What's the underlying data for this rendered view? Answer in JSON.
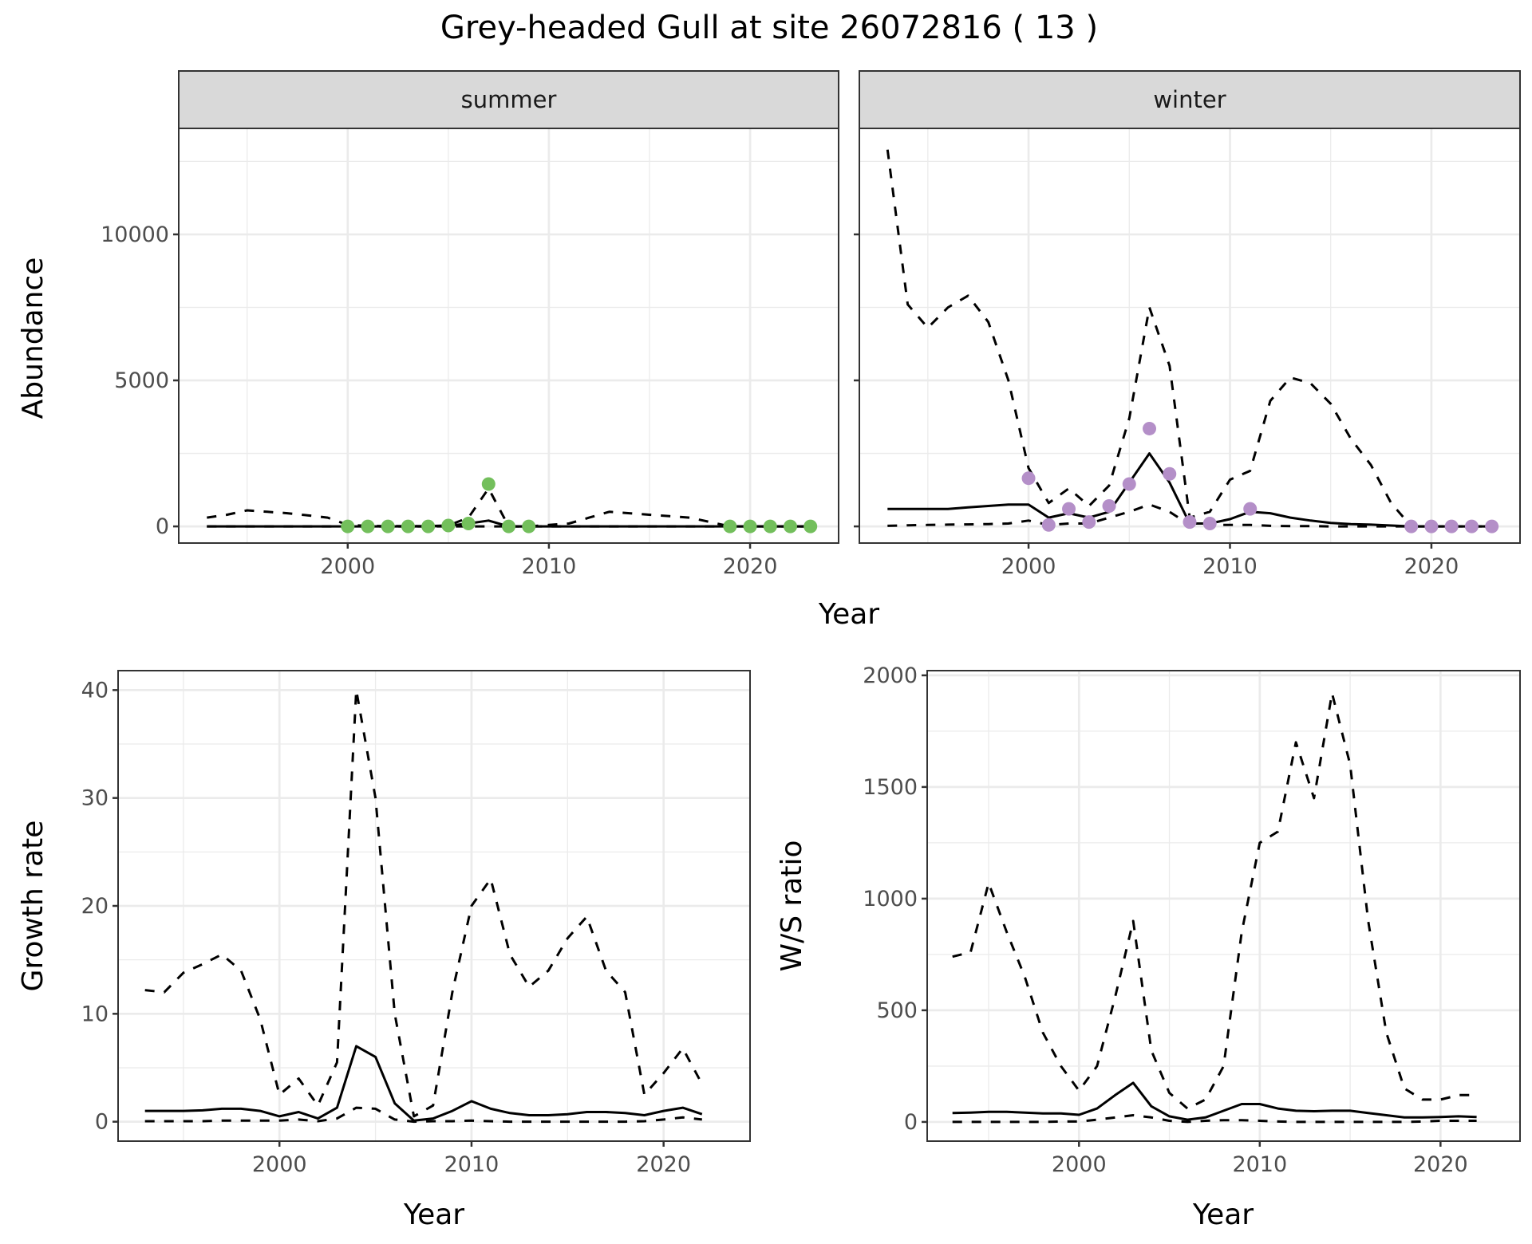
{
  "title": "Grey-headed Gull at site 26072816 ( 13 )",
  "colors": {
    "summer_points": "#73bf5c",
    "winter_points": "#b48fc8",
    "lines": "#000000",
    "strip": "#d9d9d9",
    "grid": "#ebebeb",
    "border": "#333333"
  },
  "chart_data": [
    {
      "type": "line",
      "panel": "summer",
      "strip_label": "summer",
      "ylabel": "Abundance",
      "xlabel": "Year",
      "xlim": [
        1991.6,
        2024.4
      ],
      "ylim": [
        -570,
        13630
      ],
      "xticks": [
        2000,
        2010,
        2020
      ],
      "yticks": [
        0,
        5000,
        10000
      ],
      "grid": true,
      "x": [
        1993,
        1994,
        1995,
        1996,
        1997,
        1998,
        1999,
        2000,
        2001,
        2002,
        2003,
        2004,
        2005,
        2006,
        2007,
        2008,
        2009,
        2010,
        2011,
        2012,
        2013,
        2014,
        2015,
        2016,
        2017,
        2018,
        2019,
        2020,
        2021,
        2022,
        2023
      ],
      "series": [
        {
          "style": "dashed",
          "values": [
            300,
            400,
            550,
            500,
            450,
            380,
            300,
            50,
            20,
            10,
            10,
            10,
            30,
            300,
            1300,
            0,
            0,
            50,
            100,
            300,
            500,
            450,
            400,
            350,
            300,
            150,
            0,
            0,
            0,
            0,
            0
          ]
        },
        {
          "style": "solid",
          "values": [
            0,
            0,
            0,
            0,
            0,
            0,
            0,
            0,
            0,
            0,
            0,
            0,
            20,
            100,
            200,
            0,
            0,
            0,
            0,
            0,
            0,
            0,
            0,
            0,
            0,
            0,
            0,
            0,
            0,
            0,
            0
          ]
        },
        {
          "style": "dashed",
          "values": [
            0,
            0,
            0,
            0,
            0,
            0,
            0,
            0,
            0,
            0,
            0,
            0,
            0,
            0,
            0,
            0,
            0,
            0,
            0,
            0,
            0,
            0,
            0,
            0,
            0,
            0,
            0,
            0,
            0,
            0,
            0
          ]
        }
      ],
      "points": {
        "x": [
          2000,
          2001,
          2002,
          2003,
          2004,
          2005,
          2006,
          2007,
          2008,
          2009,
          2019,
          2020,
          2021,
          2022,
          2023
        ],
        "y": [
          0,
          0,
          0,
          0,
          0,
          30,
          100,
          1450,
          0,
          0,
          0,
          0,
          0,
          0,
          0
        ]
      }
    },
    {
      "type": "line",
      "panel": "winter",
      "strip_label": "winter",
      "xlabel": "Year",
      "xlim": [
        1991.6,
        2024.4
      ],
      "ylim": [
        -570,
        13630
      ],
      "xticks": [
        2000,
        2010,
        2020
      ],
      "yticks": [
        0,
        5000,
        10000
      ],
      "grid": true,
      "x": [
        1993,
        1994,
        1995,
        1996,
        1997,
        1998,
        1999,
        2000,
        2001,
        2002,
        2003,
        2004,
        2005,
        2006,
        2007,
        2008,
        2009,
        2010,
        2011,
        2012,
        2013,
        2014,
        2015,
        2016,
        2017,
        2018,
        2019,
        2020,
        2021,
        2022,
        2023
      ],
      "series": [
        {
          "style": "dashed",
          "values": [
            12900,
            7600,
            6800,
            7500,
            7900,
            7000,
            5000,
            2000,
            800,
            1300,
            700,
            1400,
            3700,
            7500,
            5500,
            300,
            500,
            1600,
            1900,
            4300,
            5100,
            4900,
            4200,
            3000,
            2100,
            800,
            0,
            0,
            0,
            0,
            0
          ]
        },
        {
          "style": "solid",
          "values": [
            600,
            600,
            600,
            600,
            650,
            700,
            750,
            750,
            300,
            450,
            300,
            500,
            1500,
            2500,
            1500,
            100,
            100,
            250,
            500,
            450,
            300,
            200,
            120,
            80,
            60,
            30,
            0,
            0,
            0,
            0,
            0
          ]
        },
        {
          "style": "dashed",
          "values": [
            20,
            40,
            50,
            60,
            70,
            80,
            100,
            200,
            50,
            100,
            100,
            300,
            500,
            750,
            500,
            50,
            50,
            50,
            50,
            20,
            10,
            10,
            0,
            0,
            0,
            0,
            0,
            0,
            0,
            0,
            0
          ]
        }
      ],
      "points": {
        "x": [
          2000,
          2001,
          2002,
          2003,
          2004,
          2005,
          2006,
          2007,
          2008,
          2009,
          2011,
          2019,
          2020,
          2021,
          2022,
          2023
        ],
        "y": [
          1650,
          50,
          600,
          150,
          700,
          1450,
          3350,
          1800,
          150,
          100,
          600,
          0,
          0,
          0,
          0,
          0
        ]
      }
    },
    {
      "type": "line",
      "panel": "growth",
      "ylabel": "Growth rate",
      "xlabel": "Year",
      "xlim": [
        1991.6,
        2024.5
      ],
      "ylim": [
        -1.8,
        41.8
      ],
      "xticks": [
        2000,
        2010,
        2020
      ],
      "yticks": [
        0,
        10,
        20,
        30,
        40
      ],
      "grid": true,
      "x": [
        1993,
        1994,
        1995,
        1996,
        1997,
        1998,
        1999,
        2000,
        2001,
        2002,
        2003,
        2004,
        2005,
        2006,
        2007,
        2008,
        2009,
        2010,
        2011,
        2012,
        2013,
        2014,
        2015,
        2016,
        2017,
        2018,
        2019,
        2020,
        2021,
        2022
      ],
      "series": [
        {
          "style": "dashed",
          "values": [
            12.2,
            12,
            13.8,
            14.6,
            15.5,
            14,
            9.5,
            2.5,
            4,
            1.5,
            5.5,
            40,
            30,
            10,
            0.5,
            1.5,
            12,
            20,
            22.5,
            15.5,
            12.5,
            14,
            17,
            19,
            14,
            12,
            2.5,
            4.5,
            6.8,
            3.5
          ]
        },
        {
          "style": "solid",
          "values": [
            1,
            1,
            1,
            1.05,
            1.2,
            1.2,
            1,
            0.5,
            0.9,
            0.3,
            1.3,
            7,
            6,
            1.7,
            0.1,
            0.3,
            1,
            1.9,
            1.2,
            0.8,
            0.6,
            0.6,
            0.7,
            0.9,
            0.9,
            0.8,
            0.6,
            1,
            1.3,
            0.7
          ]
        },
        {
          "style": "dashed",
          "values": [
            0.05,
            0.05,
            0.05,
            0.05,
            0.1,
            0.1,
            0.1,
            0.1,
            0.2,
            0.05,
            0.3,
            1.3,
            1.2,
            0.2,
            0,
            0.05,
            0.05,
            0.1,
            0.05,
            0,
            0,
            0,
            0,
            0,
            0,
            0,
            0.05,
            0.2,
            0.4,
            0.2
          ]
        }
      ]
    },
    {
      "type": "line",
      "panel": "ws_ratio",
      "ylabel": "W/S ratio",
      "xlabel": "Year",
      "xlim": [
        1991.6,
        2024.4
      ],
      "ylim": [
        -86,
        2021
      ],
      "xticks": [
        2000,
        2010,
        2020
      ],
      "yticks": [
        0,
        500,
        1000,
        1500,
        2000
      ],
      "grid": true,
      "x": [
        1993,
        1994,
        1995,
        1996,
        1997,
        1998,
        1999,
        2000,
        2001,
        2002,
        2003,
        2004,
        2005,
        2006,
        2007,
        2008,
        2009,
        2010,
        2011,
        2012,
        2013,
        2014,
        2015,
        2016,
        2017,
        2018,
        2019,
        2020,
        2021,
        2022
      ],
      "series": [
        {
          "style": "dashed",
          "values": [
            740,
            760,
            1070,
            850,
            650,
            400,
            250,
            140,
            250,
            560,
            900,
            320,
            130,
            60,
            100,
            250,
            850,
            1250,
            1300,
            1700,
            1450,
            1920,
            1600,
            900,
            400,
            150,
            100,
            100,
            120,
            120
          ]
        },
        {
          "style": "solid",
          "values": [
            40,
            42,
            45,
            45,
            42,
            38,
            38,
            32,
            60,
            120,
            175,
            70,
            25,
            10,
            20,
            50,
            80,
            80,
            60,
            50,
            48,
            50,
            50,
            40,
            30,
            20,
            20,
            22,
            25,
            22
          ]
        },
        {
          "style": "dashed",
          "values": [
            0,
            0,
            0,
            0,
            0,
            0,
            2,
            2,
            10,
            20,
            30,
            20,
            5,
            0,
            5,
            8,
            8,
            5,
            2,
            0,
            0,
            0,
            0,
            0,
            0,
            0,
            2,
            5,
            5,
            5
          ]
        }
      ]
    }
  ]
}
